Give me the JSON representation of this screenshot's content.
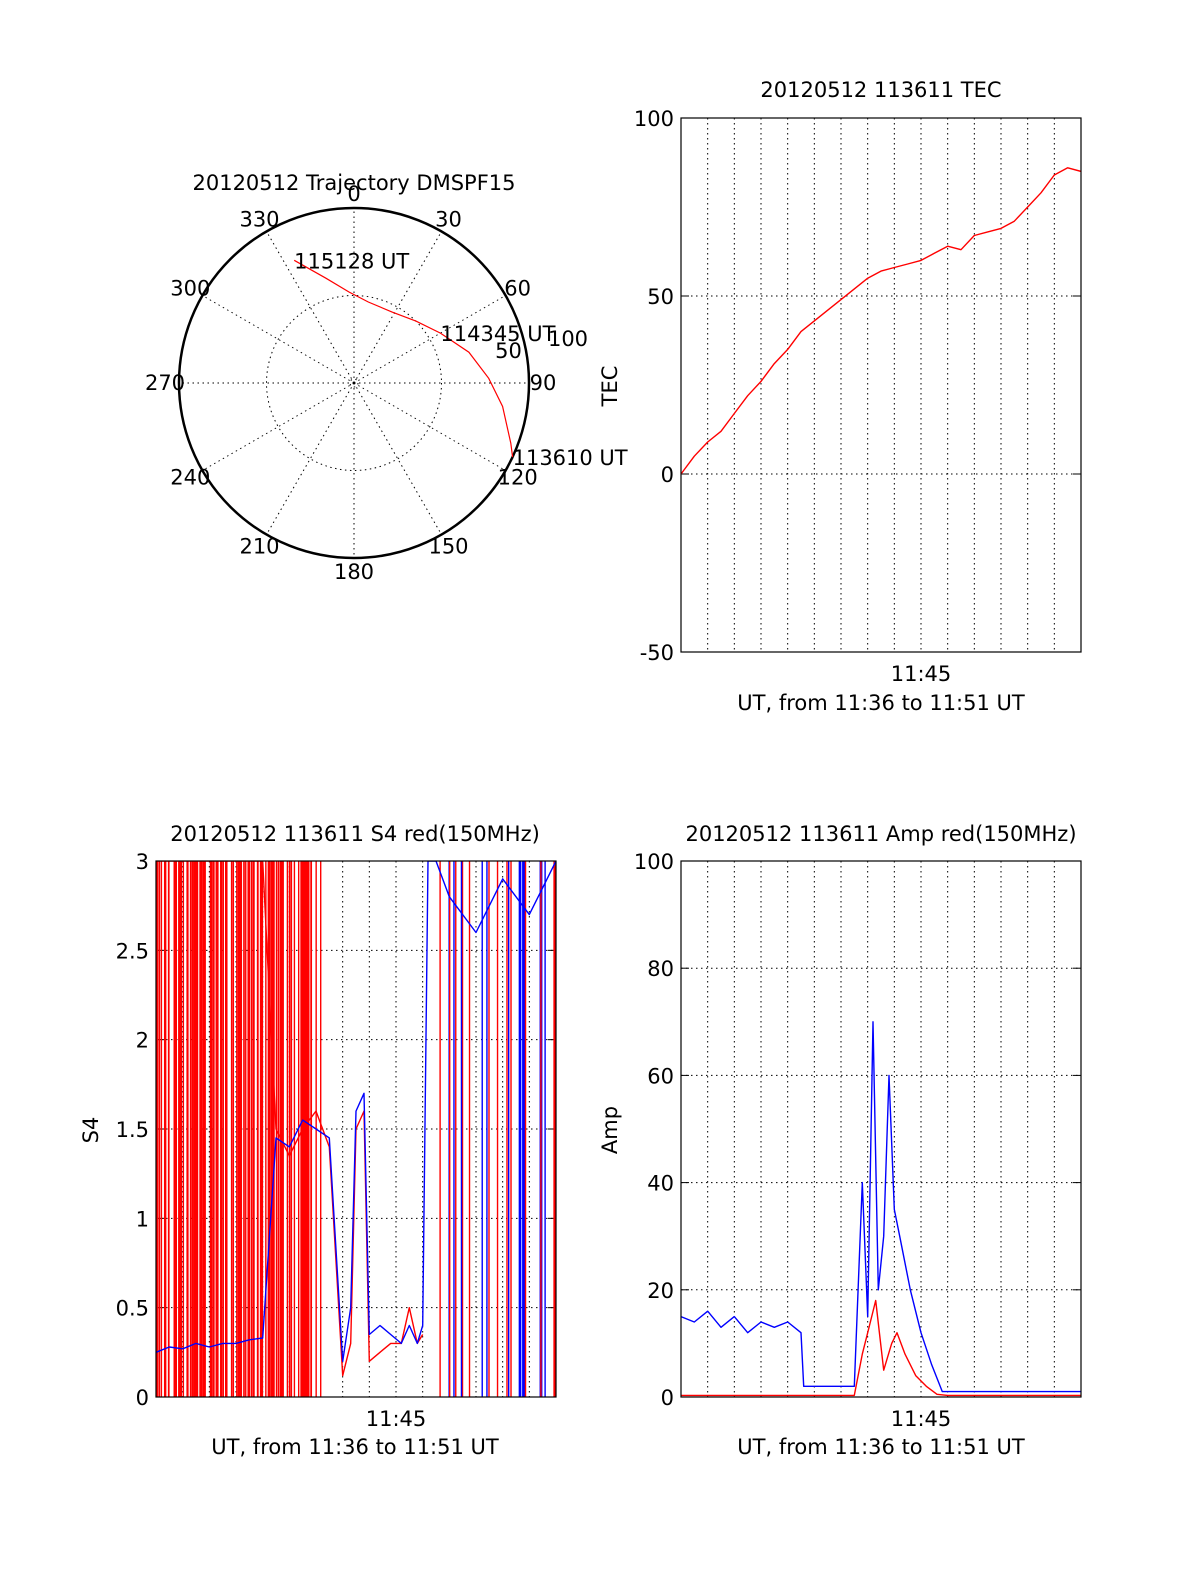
{
  "colors": {
    "red": "#ff0000",
    "blue": "#0000ff",
    "axis": "#000000"
  },
  "chart_data": [
    {
      "id": "trajectory",
      "type": "polar",
      "title": "20120512 Trajectory DMSPF15",
      "angle_labels": [
        "0",
        "30",
        "60",
        "90",
        "120",
        "150",
        "180",
        "210",
        "240",
        "270",
        "300",
        "330"
      ],
      "radial_ticks": [
        {
          "value": 50,
          "label": "50"
        },
        {
          "value": 100,
          "label": "100"
        }
      ],
      "r_max": 100,
      "series": [
        {
          "color": "red",
          "points": [
            {
              "az": 334,
              "r": 78
            },
            {
              "az": 345,
              "r": 62
            },
            {
              "az": 357,
              "r": 52
            },
            {
              "az": 10,
              "r": 47
            },
            {
              "az": 28,
              "r": 46
            },
            {
              "az": 45,
              "r": 50
            },
            {
              "az": 60,
              "r": 57
            },
            {
              "az": 75,
              "r": 68
            },
            {
              "az": 88,
              "r": 77
            },
            {
              "az": 99,
              "r": 86
            },
            {
              "az": 111,
              "r": 96
            },
            {
              "az": 115,
              "r": 100
            }
          ]
        }
      ],
      "annotations": [
        {
          "text": "115128 UT",
          "az": 334,
          "r": 78
        },
        {
          "text": "114345 UT",
          "az": 60,
          "r": 57
        },
        {
          "text": "113610 UT",
          "az": 115,
          "r": 100
        }
      ]
    },
    {
      "id": "tec",
      "type": "line",
      "title": "20120512 113611 TEC",
      "xlabel": "UT, from 11:36 to 11:51 UT",
      "ylabel": "TEC",
      "xlim": [
        0,
        15
      ],
      "ylim": [
        -50,
        100
      ],
      "xticks": [
        {
          "value": 9,
          "label": "11:45"
        }
      ],
      "yticks": [
        -50,
        0,
        50,
        100
      ],
      "grid": true,
      "series": [
        {
          "color": "red",
          "x": [
            0,
            0.5,
            1,
            1.5,
            2,
            2.5,
            3,
            3.5,
            4,
            4.5,
            5,
            5.5,
            6,
            6.5,
            7,
            7.5,
            8,
            8.5,
            9,
            9.5,
            10,
            10.5,
            11,
            11.5,
            12,
            12.5,
            13,
            13.5,
            14,
            14.5,
            15
          ],
          "y": [
            0,
            5,
            9,
            12,
            17,
            22,
            26,
            31,
            35,
            40,
            43,
            46,
            49,
            52,
            55,
            57,
            58,
            59,
            60,
            62,
            64,
            63,
            67,
            68,
            69,
            71,
            75,
            79,
            84,
            86,
            85
          ]
        }
      ]
    },
    {
      "id": "s4",
      "type": "line",
      "title": "20120512 113611 S4 red(150MHz)",
      "xlabel": "UT, from 11:36 to 11:51 UT",
      "ylabel": "S4",
      "xlim": [
        0,
        15
      ],
      "ylim": [
        0,
        3
      ],
      "xticks": [
        {
          "value": 9,
          "label": "11:45"
        }
      ],
      "yticks": [
        {
          "value": 0,
          "label": "0"
        },
        {
          "value": 0.5,
          "label": "0.5"
        },
        {
          "value": 1,
          "label": "1"
        },
        {
          "value": 1.5,
          "label": "1.5"
        },
        {
          "value": 2,
          "label": "2"
        },
        {
          "value": 2.5,
          "label": "2.5"
        },
        {
          "value": 3,
          "label": "3"
        }
      ],
      "grid": true,
      "series": [
        {
          "color": "red",
          "x": [
            0,
            1,
            2,
            3,
            4,
            4.5,
            5,
            5.5,
            6,
            6.5,
            7,
            7.3,
            7.5,
            7.8,
            8,
            8.4,
            8.8,
            9.2,
            9.5,
            9.8,
            10
          ],
          "y": [
            3,
            3,
            3,
            3,
            3,
            1.5,
            1.35,
            1.5,
            1.6,
            1.4,
            0.12,
            0.3,
            1.5,
            1.6,
            0.2,
            0.25,
            0.3,
            0.3,
            0.5,
            0.3,
            0.35
          ]
        },
        {
          "color": "blue",
          "x": [
            0,
            0.5,
            1,
            1.5,
            2,
            2.5,
            3,
            3.5,
            4,
            4.5,
            5,
            5.5,
            6,
            6.5,
            7,
            7.3,
            7.5,
            7.8,
            8,
            8.4,
            8.8,
            9.2,
            9.5,
            9.8,
            10,
            10.2,
            10.5,
            11,
            12,
            13,
            14,
            15
          ],
          "y": [
            0.25,
            0.28,
            0.27,
            0.3,
            0.28,
            0.3,
            0.3,
            0.32,
            0.33,
            1.45,
            1.4,
            1.55,
            1.5,
            1.45,
            0.2,
            0.5,
            1.6,
            1.7,
            0.35,
            0.4,
            0.35,
            0.3,
            0.4,
            0.3,
            0.4,
            3,
            3,
            2.8,
            2.6,
            2.9,
            2.7,
            3
          ]
        }
      ]
    },
    {
      "id": "amp",
      "type": "line",
      "title": "20120512 113611 Amp red(150MHz)",
      "xlabel": "UT, from 11:36 to 11:51 UT",
      "ylabel": "Amp",
      "xlim": [
        0,
        15
      ],
      "ylim": [
        0,
        100
      ],
      "xticks": [
        {
          "value": 9,
          "label": "11:45"
        }
      ],
      "yticks": [
        0,
        20,
        40,
        60,
        80,
        100
      ],
      "grid": true,
      "series": [
        {
          "color": "red",
          "x": [
            0,
            1,
            2,
            3,
            4,
            4.5,
            6.5,
            6.8,
            7,
            7.3,
            7.6,
            7.9,
            8.1,
            8.4,
            8.8,
            9.2,
            9.6,
            10,
            11,
            12,
            13,
            14,
            15
          ],
          "y": [
            0.3,
            0.3,
            0.3,
            0.3,
            0.3,
            0.3,
            0.3,
            8,
            12,
            18,
            5,
            10,
            12,
            8,
            4,
            2,
            0.5,
            0.3,
            0.3,
            0.3,
            0.3,
            0.3,
            0.3
          ]
        },
        {
          "color": "blue",
          "x": [
            0,
            0.5,
            1,
            1.5,
            2,
            2.5,
            3,
            3.5,
            4,
            4.5,
            4.6,
            5,
            5.5,
            6,
            6.5,
            6.8,
            7,
            7.2,
            7.4,
            7.6,
            7.8,
            8,
            8.2,
            8.6,
            9,
            9.4,
            9.8,
            10,
            11,
            12,
            13,
            14,
            15
          ],
          "y": [
            15,
            14,
            16,
            13,
            15,
            12,
            14,
            13,
            14,
            12,
            2,
            2,
            2,
            2,
            2,
            40,
            15,
            70,
            20,
            30,
            60,
            35,
            30,
            20,
            12,
            6,
            1,
            1,
            1,
            1,
            1,
            1,
            1
          ]
        }
      ]
    }
  ]
}
